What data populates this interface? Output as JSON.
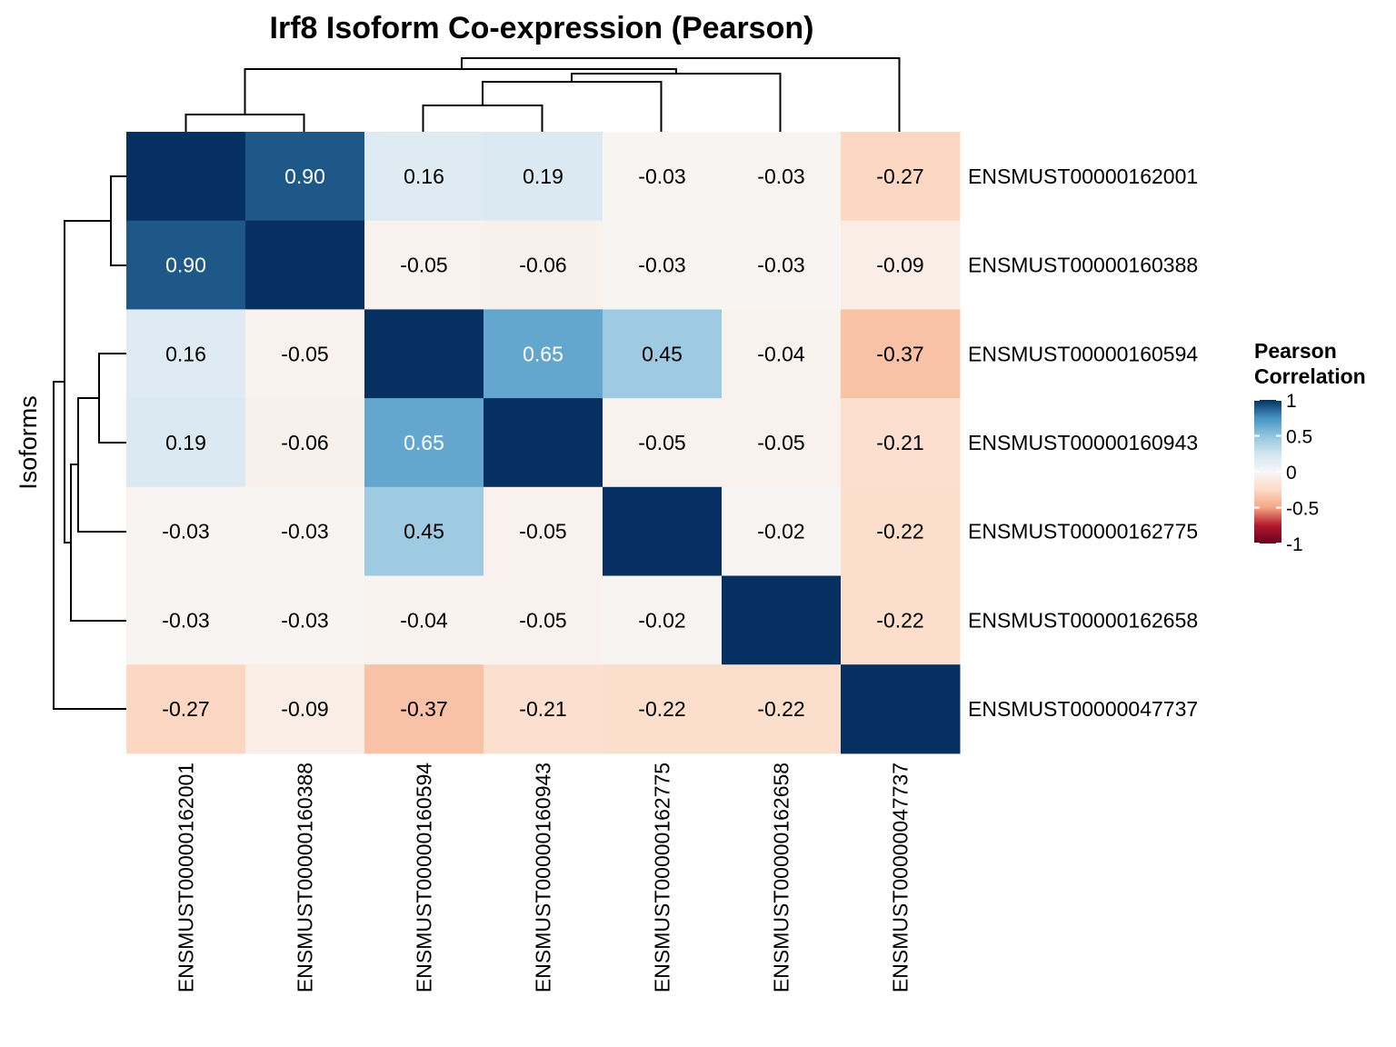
{
  "chart_data": {
    "type": "heatmap",
    "title": "Irf8 Isoform Co-expression (Pearson)",
    "ylabel": "Isoforms",
    "xlabel": "",
    "rows": [
      "ENSMUST00000162001",
      "ENSMUST00000160388",
      "ENSMUST00000160594",
      "ENSMUST00000160943",
      "ENSMUST00000162775",
      "ENSMUST00000162658",
      "ENSMUST00000047737"
    ],
    "columns": [
      "ENSMUST00000162001",
      "ENSMUST00000160388",
      "ENSMUST00000160594",
      "ENSMUST00000160943",
      "ENSMUST00000162775",
      "ENSMUST00000162658",
      "ENSMUST00000047737"
    ],
    "values": [
      [
        1.0,
        0.9,
        0.16,
        0.19,
        -0.03,
        -0.03,
        -0.27
      ],
      [
        0.9,
        1.0,
        -0.05,
        -0.06,
        -0.03,
        -0.03,
        -0.09
      ],
      [
        0.16,
        -0.05,
        1.0,
        0.65,
        0.45,
        -0.04,
        -0.37
      ],
      [
        0.19,
        -0.06,
        0.65,
        1.0,
        -0.05,
        -0.05,
        -0.21
      ],
      [
        -0.03,
        -0.03,
        0.45,
        -0.05,
        1.0,
        -0.02,
        -0.22
      ],
      [
        -0.03,
        -0.03,
        -0.04,
        -0.05,
        -0.02,
        1.0,
        -0.22
      ],
      [
        -0.27,
        -0.09,
        -0.37,
        -0.21,
        -0.22,
        -0.22,
        1.0
      ]
    ],
    "cell_labels": [
      [
        "",
        "0.90",
        "0.16",
        "0.19",
        "-0.03",
        "-0.03",
        "-0.27"
      ],
      [
        "0.90",
        "",
        "-0.05",
        "-0.06",
        "-0.03",
        "-0.03",
        "-0.09"
      ],
      [
        "0.16",
        "-0.05",
        "",
        "0.65",
        "0.45",
        "-0.04",
        "-0.37"
      ],
      [
        "0.19",
        "-0.06",
        "0.65",
        "",
        "-0.05",
        "-0.05",
        "-0.21"
      ],
      [
        "-0.03",
        "-0.03",
        "0.45",
        "-0.05",
        "",
        "-0.02",
        "-0.22"
      ],
      [
        "-0.03",
        "-0.03",
        "-0.04",
        "-0.05",
        "-0.02",
        "",
        "-0.22"
      ],
      [
        "-0.27",
        "-0.09",
        "-0.37",
        "-0.21",
        "-0.22",
        "-0.22",
        ""
      ]
    ],
    "clustering": "hierarchical, dendrograms on rows and columns",
    "legend": {
      "title": [
        "Pearson",
        "Correlation"
      ],
      "ticks": [
        1,
        0.5,
        0,
        -0.5,
        -1
      ],
      "tick_labels": [
        "1",
        "0.5",
        "0",
        "-0.5",
        "-1"
      ],
      "range": [
        -1,
        1
      ],
      "placement": "right"
    },
    "colors": {
      "low": "#67001F",
      "mid": "#F7F7F7",
      "high": "#053061"
    }
  }
}
